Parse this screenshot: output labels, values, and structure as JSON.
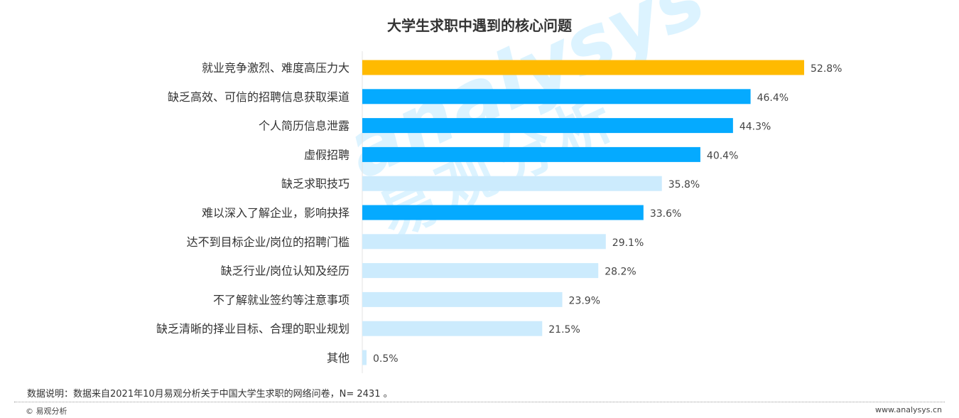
{
  "chart_data": {
    "type": "bar",
    "orientation": "horizontal",
    "title": "大学生求职中遇到的核心问题",
    "categories": [
      "就业竞争激烈、难度高压力大",
      "缺乏高效、可信的招聘信息获取渠道",
      "个人简历信息泄露",
      "虚假招聘",
      "缺乏求职技巧",
      "难以深入了解企业，影响抉择",
      "达不到目标企业/岗位的招聘门槛",
      "缺乏行业/岗位认知及经历",
      "不了解就业签约等注意事项",
      "缺乏清晰的择业目标、合理的职业规划",
      "其他"
    ],
    "values": [
      52.8,
      46.4,
      44.3,
      40.4,
      35.8,
      33.6,
      29.1,
      28.2,
      23.9,
      21.5,
      0.5
    ],
    "labels": [
      "52.8%",
      "46.4%",
      "44.3%",
      "40.4%",
      "35.8%",
      "33.6%",
      "29.1%",
      "28.2%",
      "23.9%",
      "21.5%",
      "0.5%"
    ],
    "highlight": [
      "gold",
      "blue",
      "blue",
      "blue",
      "light",
      "blue",
      "light",
      "light",
      "light",
      "light",
      "light"
    ],
    "colors": {
      "gold": "#FFBA00",
      "blue": "#05AAFF",
      "light": "#CCEBFD"
    },
    "unit": "%",
    "grid": false
  },
  "footer": {
    "note": "数据说明：数据来自2021年10月易观分析关于中国大学生求职的网络问卷，N= 2431 。",
    "copyright": "© 易观分析",
    "url": "www.analysys.cn"
  },
  "watermark": {
    "text_en": "analysys",
    "text_cn": "易观分析"
  }
}
